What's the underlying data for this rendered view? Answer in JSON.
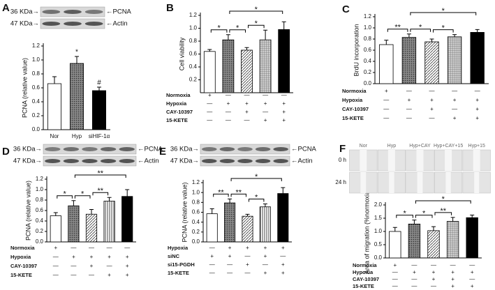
{
  "chart_data": [
    {
      "type": "bar",
      "panel": "A",
      "ylabel": "PCNA (relative value)",
      "categories": [
        "Nor",
        "Hyp",
        "siHIF-1α"
      ],
      "values": [
        0.66,
        0.95,
        0.56
      ],
      "errors": [
        0.1,
        0.1,
        0.05
      ],
      "styles": [
        "white",
        "dots",
        "black"
      ],
      "ylim": [
        0,
        1.2
      ],
      "yticks": [
        {
          "value": 0,
          "label": "0.0"
        },
        0.2,
        0.4,
        0.6,
        0.8,
        {
          "value": 1,
          "label": "1.0"
        },
        1.2
      ],
      "bar_annotations": [
        {
          "bar": 1,
          "label": "*"
        },
        {
          "bar": 2,
          "label": "#"
        }
      ],
      "blots": [
        {
          "size": "36 KDa→",
          "protein": "←PCNA"
        },
        {
          "size": "47 KDa→",
          "protein": "←Actin"
        }
      ]
    },
    {
      "type": "bar",
      "panel": "B",
      "ylabel": "Cell viability",
      "values": [
        0.64,
        0.82,
        0.66,
        0.82,
        0.98
      ],
      "errors": [
        0.03,
        0.08,
        0.04,
        0.15,
        0.12
      ],
      "styles": [
        "white",
        "dots",
        "hatch",
        "grid",
        "black"
      ],
      "ylim": [
        0,
        1.2
      ],
      "yticks": [
        0.2,
        0.4,
        0.6,
        0.8,
        {
          "value": 1,
          "label": "1.0"
        },
        1.2
      ],
      "conditions": [
        {
          "name": "Normoxia",
          "marks": [
            "+",
            "—",
            "—",
            "—",
            "—"
          ]
        },
        {
          "name": "Hypoxia",
          "marks": [
            "—",
            "+",
            "+",
            "+",
            "+"
          ]
        },
        {
          "name": "CAY-10397",
          "marks": [
            "—",
            "—",
            "+",
            "—",
            "+"
          ]
        },
        {
          "name": "15-KETE",
          "marks": [
            "—",
            "—",
            "—",
            "+",
            "+"
          ]
        }
      ],
      "brackets": [
        {
          "from": 0,
          "to": 1,
          "label": "*"
        },
        {
          "from": 1,
          "to": 2,
          "label": "*"
        },
        {
          "from": 2,
          "to": 3,
          "label": "*"
        },
        {
          "from": 1,
          "to": 4,
          "label": "*"
        }
      ]
    },
    {
      "type": "bar",
      "panel": "C",
      "ylabel": "BrdU incorporation",
      "values": [
        0.7,
        0.83,
        0.75,
        0.84,
        0.92
      ],
      "errors": [
        0.08,
        0.06,
        0.05,
        0.04,
        0.05
      ],
      "styles": [
        "white",
        "dots",
        "hatch",
        "grid",
        "black"
      ],
      "ylim": [
        0,
        1.2
      ],
      "yticks": [
        {
          "value": 0,
          "label": "0.0"
        },
        0.2,
        0.4,
        0.6,
        0.8,
        {
          "value": 1,
          "label": "1.0"
        },
        1.2
      ],
      "conditions": [
        {
          "name": "Normoxia",
          "marks": [
            "+",
            "—",
            "—",
            "—",
            "—"
          ]
        },
        {
          "name": "Hypoxia",
          "marks": [
            "—",
            "+",
            "+",
            "+",
            "+"
          ]
        },
        {
          "name": "CAY-10397",
          "marks": [
            "—",
            "—",
            "+",
            "—",
            "+"
          ]
        },
        {
          "name": "15-KETE",
          "marks": [
            "—",
            "—",
            "—",
            "+",
            "+"
          ]
        }
      ],
      "brackets": [
        {
          "from": 0,
          "to": 1,
          "label": "**"
        },
        {
          "from": 1,
          "to": 2,
          "label": "*"
        },
        {
          "from": 2,
          "to": 3,
          "label": "*"
        },
        {
          "from": 1,
          "to": 4,
          "label": "*"
        }
      ]
    },
    {
      "type": "bar",
      "panel": "D",
      "ylabel": "PCNA (relative value)",
      "values": [
        0.5,
        0.69,
        0.53,
        0.78,
        0.87
      ],
      "errors": [
        0.06,
        0.1,
        0.09,
        0.07,
        0.13
      ],
      "styles": [
        "white",
        "dots",
        "hatch",
        "vlines",
        "black"
      ],
      "ylim": [
        0,
        1.2
      ],
      "yticks": [
        {
          "value": 0,
          "label": "0.0"
        },
        0.2,
        0.4,
        0.6,
        0.8,
        {
          "value": 1,
          "label": "1.0"
        },
        1.2
      ],
      "conditions": [
        {
          "name": "Normoxia",
          "marks": [
            "+",
            "—",
            "—",
            "—",
            "—"
          ]
        },
        {
          "name": "Hypoxia",
          "marks": [
            "—",
            "+",
            "+",
            "+",
            "+"
          ]
        },
        {
          "name": "CAY-10397",
          "marks": [
            "—",
            "—",
            "+",
            "—",
            "+"
          ]
        },
        {
          "name": "15-KETE",
          "marks": [
            "—",
            "—",
            "—",
            "+",
            "+"
          ]
        }
      ],
      "brackets": [
        {
          "from": 0,
          "to": 1,
          "label": "*"
        },
        {
          "from": 1,
          "to": 2,
          "label": "*"
        },
        {
          "from": 2,
          "to": 3,
          "label": "**"
        },
        {
          "from": 1,
          "to": 4,
          "label": "**"
        }
      ],
      "blots": [
        {
          "size": "36 KDa→",
          "protein": "←PCNA"
        },
        {
          "size": "47 KDa→",
          "protein": "←Actin"
        }
      ]
    },
    {
      "type": "bar",
      "panel": "E",
      "ylabel": "PCNA (relative value)",
      "values": [
        0.57,
        0.79,
        0.52,
        0.71,
        0.98
      ],
      "errors": [
        0.1,
        0.08,
        0.04,
        0.06,
        0.12
      ],
      "styles": [
        "white",
        "dots",
        "hatch",
        "vlines",
        "black"
      ],
      "ylim": [
        0,
        1.2
      ],
      "yticks": [
        {
          "value": 0,
          "label": "0.0"
        },
        0.2,
        0.4,
        0.6,
        0.8,
        {
          "value": 1,
          "label": "1.0"
        },
        1.2
      ],
      "conditions": [
        {
          "name": "Hypoxia",
          "marks": [
            "—",
            "+",
            "+",
            "+",
            "+"
          ]
        },
        {
          "name": "siNC",
          "marks": [
            "+",
            "+",
            "—",
            "+",
            "—"
          ]
        },
        {
          "name": "si15-PGDH",
          "marks": [
            "—",
            "—",
            "+",
            "—",
            "+"
          ]
        },
        {
          "name": "15-KETE",
          "marks": [
            "—",
            "—",
            "—",
            "+",
            "+"
          ]
        }
      ],
      "brackets": [
        {
          "from": 0,
          "to": 1,
          "label": "**"
        },
        {
          "from": 1,
          "to": 2,
          "label": "**"
        },
        {
          "from": 2,
          "to": 3,
          "label": "*"
        },
        {
          "from": 1,
          "to": 4,
          "label": "*"
        }
      ],
      "blots": [
        {
          "size": "36 KDa→",
          "protein": "←PCNA"
        },
        {
          "size": "47 KDa→",
          "protein": "←Actin"
        }
      ]
    },
    {
      "type": "bar",
      "panel": "F",
      "ylabel": "Area of migration (%normoxia)",
      "values": [
        1.0,
        1.28,
        1.03,
        1.38,
        1.52
      ],
      "errors": [
        0.15,
        0.15,
        0.15,
        0.15,
        0.1
      ],
      "styles": [
        "white",
        "dots",
        "hatch",
        "grid",
        "black"
      ],
      "ylim": [
        0,
        2
      ],
      "yticks": [
        {
          "value": 0,
          "label": "0.0"
        },
        0.5,
        {
          "value": 1,
          "label": "1.0"
        },
        1.5,
        {
          "value": 2,
          "label": "2.0"
        }
      ],
      "conditions": [
        {
          "name": "Normoxia",
          "marks": [
            "+",
            "—",
            "—",
            "—",
            "—"
          ]
        },
        {
          "name": "Hypoxia",
          "marks": [
            "—",
            "+",
            "+",
            "+",
            "+"
          ]
        },
        {
          "name": "CAY-10397",
          "marks": [
            "—",
            "—",
            "+",
            "+",
            "—"
          ]
        },
        {
          "name": "15-KETE",
          "marks": [
            "—",
            "—",
            "—",
            "+",
            "+"
          ]
        }
      ],
      "brackets": [
        {
          "from": 0,
          "to": 1,
          "label": "*"
        },
        {
          "from": 1,
          "to": 2,
          "label": "*"
        },
        {
          "from": 2,
          "to": 3,
          "label": "**"
        },
        {
          "from": 1,
          "to": 4,
          "label": "*"
        }
      ],
      "image_columns": [
        "Nor",
        "Hyp",
        "Hyp+CAY",
        "Hyp+CAY+15",
        "Hyp+15"
      ],
      "image_rows": [
        "0 h",
        "24 h"
      ]
    }
  ]
}
